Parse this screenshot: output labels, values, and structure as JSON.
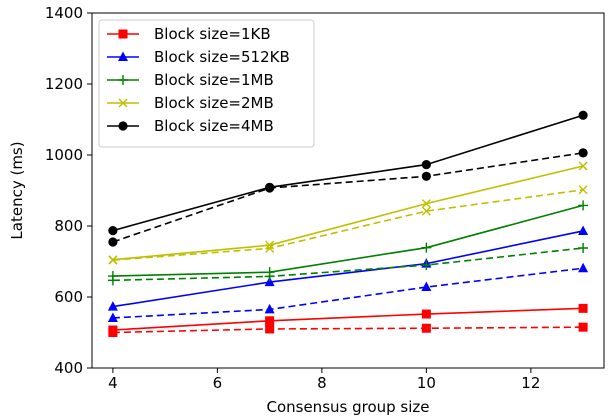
{
  "chart_data": {
    "type": "line",
    "xlabel": "Consensus group size",
    "ylabel": "Latency (ms)",
    "xlim": [
      3.6,
      13.4
    ],
    "ylim": [
      400,
      1400
    ],
    "xticks": [
      "4",
      "6",
      "8",
      "10",
      "12"
    ],
    "yticks": [
      "400",
      "600",
      "800",
      "1000",
      "1200",
      "1400"
    ],
    "x": [
      4,
      7,
      10,
      13
    ],
    "grid": false,
    "legend_position": "top-left",
    "series": [
      {
        "name": "Block size=1KB",
        "color": "#ff0000",
        "marker": "square",
        "values": [
          507,
          533,
          552,
          568
        ],
        "dashed_values": [
          500,
          510,
          512,
          515
        ]
      },
      {
        "name": "Block size=512KB",
        "color": "#0000ff",
        "marker": "triangle",
        "values": [
          573,
          642,
          694,
          786
        ],
        "dashed_values": [
          541,
          565,
          628,
          681
        ]
      },
      {
        "name": "Block size=1MB",
        "color": "#008000",
        "marker": "plus",
        "values": [
          659,
          670,
          739,
          858
        ],
        "dashed_values": [
          647,
          658,
          690,
          738
        ]
      },
      {
        "name": "Block size=2MB",
        "color": "#bfbf00",
        "marker": "x",
        "values": [
          705,
          746,
          863,
          969
        ],
        "dashed_values": [
          704,
          737,
          842,
          902
        ]
      },
      {
        "name": "Block size=4MB",
        "color": "#000000",
        "marker": "circle",
        "values": [
          787,
          909,
          973,
          1112
        ],
        "dashed_values": [
          755,
          907,
          940,
          1006
        ]
      }
    ]
  }
}
